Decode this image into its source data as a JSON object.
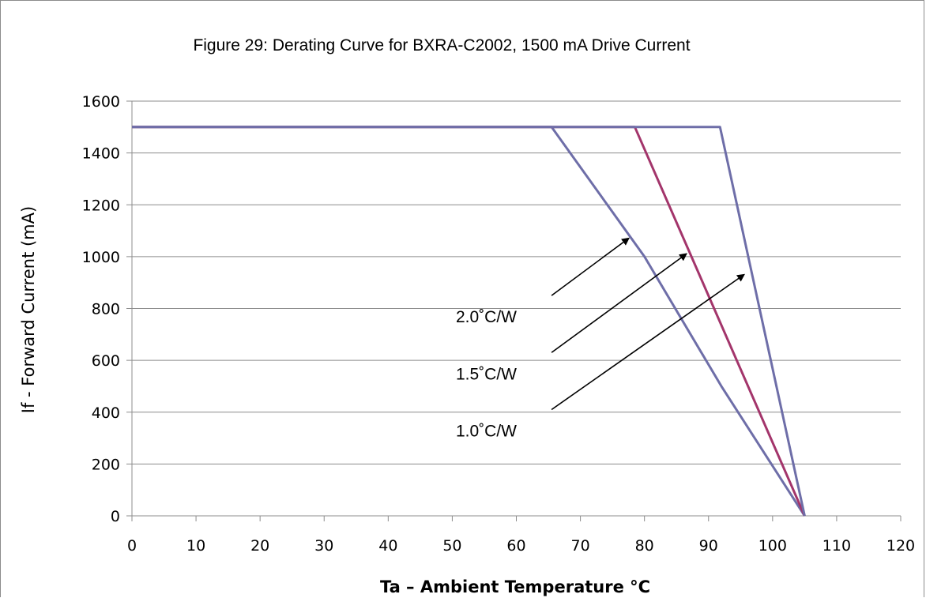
{
  "chart_data": {
    "type": "line",
    "title": "Figure 29:  Derating Curve for BXRA-C2002, 1500 mA Drive Current",
    "xlabel": "Ta – Ambient Temperature °C",
    "ylabel": "If - Forward Current (mA)",
    "xlim": [
      0,
      120
    ],
    "ylim": [
      0,
      1600
    ],
    "xticks": [
      0,
      10,
      20,
      30,
      40,
      50,
      60,
      70,
      80,
      90,
      100,
      110,
      120
    ],
    "yticks": [
      0,
      200,
      400,
      600,
      800,
      1000,
      1200,
      1400,
      1600
    ],
    "grid": "horizontal",
    "series": [
      {
        "name": "2.0˚C/W",
        "color": "#6e6ea8",
        "points": [
          [
            0,
            1500
          ],
          [
            65.5,
            1500
          ],
          [
            80,
            1000
          ],
          [
            92,
            500
          ],
          [
            105,
            0
          ]
        ]
      },
      {
        "name": "1.5˚C/W",
        "color": "#a3356b",
        "points": [
          [
            0,
            1500
          ],
          [
            78.5,
            1500
          ],
          [
            105,
            0
          ]
        ]
      },
      {
        "name": "1.0˚C/W",
        "color": "#6e6ea8",
        "points": [
          [
            0,
            1500
          ],
          [
            91.8,
            1500
          ],
          [
            105,
            0
          ]
        ]
      }
    ],
    "annotations": [
      {
        "text": "2.0˚C/W",
        "arrow_from": [
          65.5,
          850
        ],
        "arrow_to": [
          77.5,
          1070
        ]
      },
      {
        "text": "1.5˚C/W",
        "arrow_from": [
          65.5,
          630
        ],
        "arrow_to": [
          86.5,
          1010
        ]
      },
      {
        "text": "1.0˚C/W",
        "arrow_from": [
          65.5,
          410
        ],
        "arrow_to": [
          95.5,
          930
        ]
      }
    ]
  }
}
